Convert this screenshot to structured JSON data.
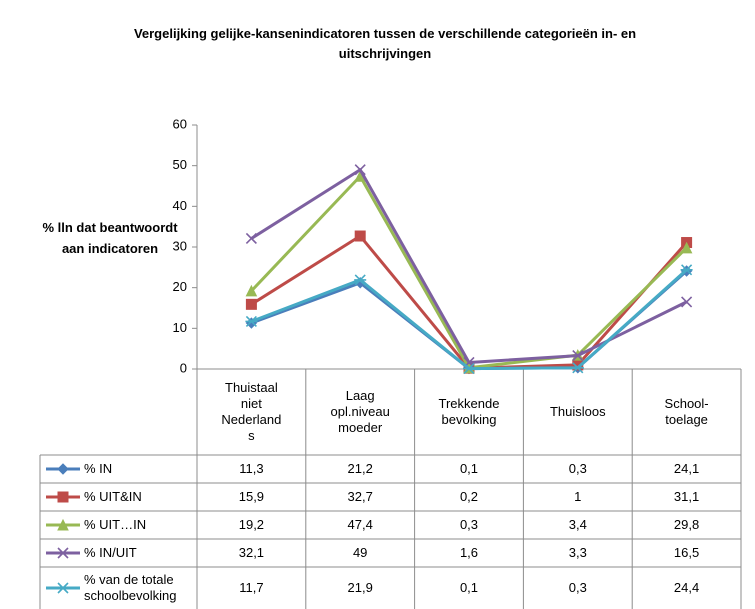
{
  "chart_data": {
    "type": "line",
    "title": "Vergelijking gelijke-kansenindicatoren tussen de verschillende  categorieën in- en uitschrijvingen",
    "y_label": "% lln dat beantwoordt aan indicatoren",
    "categories": [
      "Thuistaal\nniet\nNederland\ns",
      "Laag\nopl.niveau\nmoeder",
      "Trekkende\nbevolking",
      "Thuisloos",
      "School-\ntoelage"
    ],
    "ylim": [
      0,
      60
    ],
    "yticks": [
      0,
      10,
      20,
      30,
      40,
      50,
      60
    ],
    "series": [
      {
        "name": "% IN",
        "color": "#4a7ebb",
        "marker": "diamond",
        "values": [
          11.3,
          21.2,
          0.1,
          0.3,
          24.1
        ],
        "value_labels": [
          "11,3",
          "21,2",
          "0,1",
          "0,3",
          "24,1"
        ]
      },
      {
        "name": "% UIT&IN",
        "color": "#be4b48",
        "marker": "square",
        "values": [
          15.9,
          32.7,
          0.2,
          1,
          31.1
        ],
        "value_labels": [
          "15,9",
          "32,7",
          "0,2",
          "1",
          "31,1"
        ]
      },
      {
        "name": "% UIT…IN",
        "color": "#98b954",
        "marker": "triangle",
        "values": [
          19.2,
          47.4,
          0.3,
          3.4,
          29.8
        ],
        "value_labels": [
          "19,2",
          "47,4",
          "0,3",
          "3,4",
          "29,8"
        ]
      },
      {
        "name": "% IN/UIT",
        "color": "#7d60a0",
        "marker": "x",
        "values": [
          32.1,
          49,
          1.6,
          3.3,
          16.5
        ],
        "value_labels": [
          "32,1",
          "49",
          "1,6",
          "3,3",
          "16,5"
        ]
      },
      {
        "name": "% van de totale schoolbevolking",
        "color": "#46aac5",
        "marker": "star",
        "values": [
          11.7,
          21.9,
          0.1,
          0.3,
          24.4
        ],
        "value_labels": [
          "11,7",
          "21,9",
          "0,1",
          "0,3",
          "24,4"
        ]
      }
    ]
  }
}
